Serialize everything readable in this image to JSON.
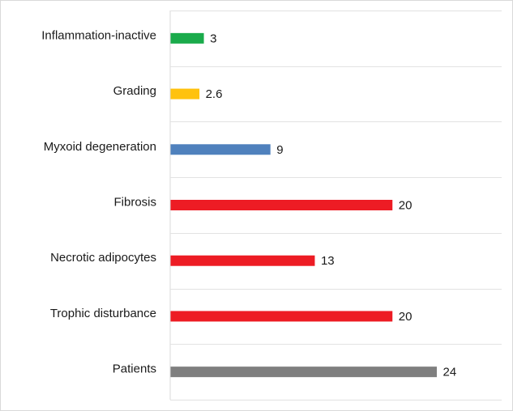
{
  "chart_data": {
    "type": "bar",
    "orientation": "horizontal",
    "title": "",
    "xlabel": "",
    "ylabel": "",
    "xlim": [
      0,
      24
    ],
    "grid": true,
    "legend": "none",
    "categories": [
      "Inflammation-inactive",
      "Grading",
      "Myxoid degeneration",
      "Fibrosis",
      "Necrotic adipocytes",
      "Trophic disturbance",
      "Patients"
    ],
    "values": [
      3,
      2.6,
      9,
      20,
      13,
      20,
      24
    ],
    "value_labels": [
      "3",
      "2.6",
      "9",
      "20",
      "13",
      "20",
      "24"
    ],
    "colors": [
      "#1aab4b",
      "#ffc20e",
      "#4f81bd",
      "#ed1c24",
      "#ed1c24",
      "#ed1c24",
      "#7f7f7f"
    ]
  }
}
